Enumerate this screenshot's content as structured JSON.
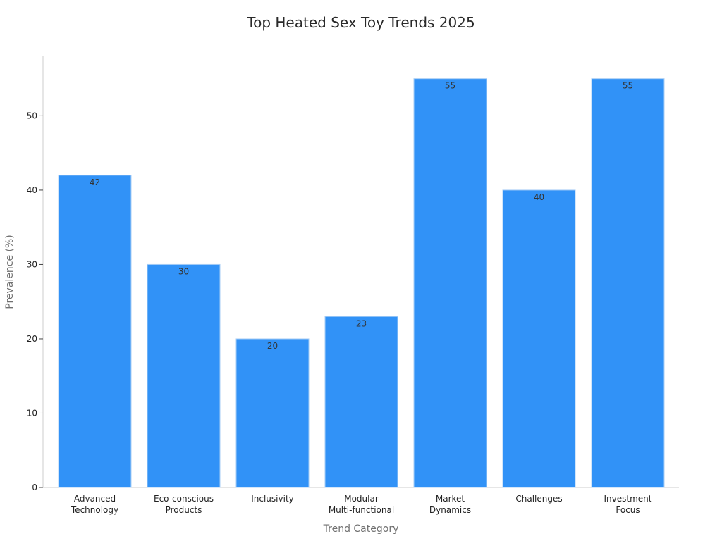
{
  "chart_data": {
    "type": "bar",
    "title": "Top Heated Sex Toy Trends 2025",
    "xlabel": "Trend Category",
    "ylabel": "Prevalence (%)",
    "categories": [
      [
        "Advanced",
        "Technology"
      ],
      [
        "Eco-conscious",
        "Products"
      ],
      [
        "Inclusivity"
      ],
      [
        "Modular",
        "Multi-functional"
      ],
      [
        "Market",
        "Dynamics"
      ],
      [
        "Challenges"
      ],
      [
        "Investment",
        "Focus"
      ]
    ],
    "values": [
      42,
      30,
      20,
      23,
      55,
      40,
      55
    ],
    "ylim": [
      0,
      58
    ],
    "yticks": [
      0,
      10,
      20,
      30,
      40,
      50
    ],
    "bar_color": "#3192f7",
    "grid": false,
    "data_labels": true
  }
}
